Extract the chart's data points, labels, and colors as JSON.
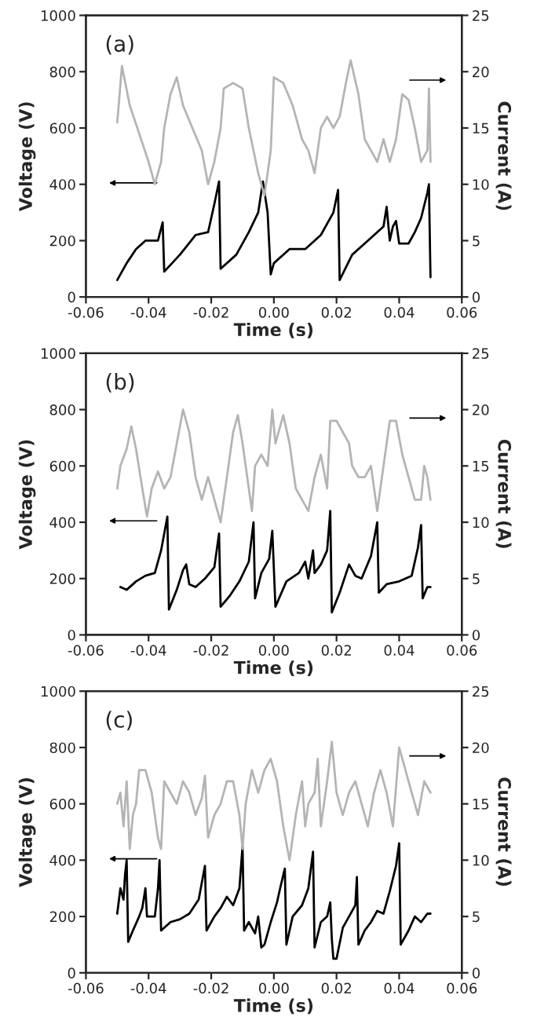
{
  "chart_data": [
    {
      "type": "line",
      "xlabel": "Time (s)",
      "ylabel": "Voltage (V)",
      "y2label": "Current (A)",
      "annotations": [
        "(a)"
      ],
      "xlim": [
        -0.06,
        0.06
      ],
      "xticks": [
        {
          "value": -0.06,
          "label": "-0.06"
        },
        {
          "value": -0.04,
          "label": "-0.04"
        },
        {
          "value": -0.02,
          "label": "-0.02"
        },
        {
          "value": 0,
          "label": "0.00"
        },
        {
          "value": 0.02,
          "label": "0.02"
        },
        {
          "value": 0.04,
          "label": "0.04"
        },
        {
          "value": 0.06,
          "label": "0.06"
        }
      ],
      "ylim": [
        0,
        1000
      ],
      "yticks": [
        0,
        200,
        400,
        600,
        800,
        1000
      ],
      "y2lim": [
        0,
        25
      ],
      "y2ticks": [
        0,
        5,
        10,
        15,
        20,
        25
      ],
      "grid": false,
      "series": [
        {
          "color": "#000000",
          "x": [
            -0.05,
            -0.047,
            -0.044,
            -0.041,
            -0.037,
            -0.0355,
            -0.035,
            -0.03,
            -0.025,
            -0.021,
            -0.019,
            -0.0175,
            -0.017,
            -0.012,
            -0.008,
            -0.005,
            -0.0035,
            -0.002,
            -0.001,
            0.0,
            0.005,
            0.01,
            0.015,
            0.019,
            0.0205,
            0.021,
            0.025,
            0.03,
            0.035,
            0.036,
            0.037,
            0.038,
            0.039,
            0.04,
            0.043,
            0.045,
            0.047,
            0.049,
            0.0495,
            0.05
          ],
          "values": [
            60,
            120,
            170,
            200,
            200,
            265,
            90,
            150,
            220,
            230,
            330,
            410,
            100,
            150,
            230,
            300,
            410,
            300,
            80,
            120,
            170,
            170,
            220,
            300,
            380,
            60,
            150,
            200,
            250,
            320,
            200,
            250,
            270,
            190,
            190,
            230,
            280,
            370,
            400,
            70
          ]
        },
        {
          "color": "#b4b4b4",
          "axis": "y2",
          "x": [
            -0.05,
            -0.0485,
            -0.046,
            -0.043,
            -0.04,
            -0.038,
            -0.036,
            -0.035,
            -0.033,
            -0.031,
            -0.029,
            -0.026,
            -0.023,
            -0.021,
            -0.019,
            -0.017,
            -0.016,
            -0.013,
            -0.01,
            -0.008,
            -0.005,
            -0.003,
            -0.001,
            0.0,
            0.003,
            0.006,
            0.009,
            0.011,
            0.013,
            0.015,
            0.017,
            0.019,
            0.021,
            0.023,
            0.0245,
            0.027,
            0.029,
            0.031,
            0.033,
            0.035,
            0.037,
            0.039,
            0.041,
            0.043,
            0.045,
            0.047,
            0.049,
            0.0495,
            0.05
          ],
          "values": [
            15.5,
            20.5,
            17,
            14.5,
            12,
            10,
            12,
            15,
            18,
            19.5,
            17,
            15,
            13,
            10,
            12,
            15,
            18.5,
            19,
            18.5,
            15,
            11,
            9,
            13,
            19.5,
            19,
            17,
            14,
            13,
            11,
            15,
            16,
            15,
            16,
            19,
            21,
            18,
            14,
            13,
            12,
            14,
            12,
            14,
            18,
            17.5,
            15,
            12,
            13,
            18.5,
            12
          ]
        }
      ]
    },
    {
      "type": "line",
      "xlabel": "Time (s)",
      "ylabel": "Voltage (V)",
      "y2label": "Current (A)",
      "annotations": [
        "(b)"
      ],
      "xlim": [
        -0.06,
        0.06
      ],
      "xticks": [
        {
          "value": -0.06,
          "label": "-0.06"
        },
        {
          "value": -0.04,
          "label": "-0.04"
        },
        {
          "value": -0.02,
          "label": "-0.02"
        },
        {
          "value": 0,
          "label": "0.00"
        },
        {
          "value": 0.02,
          "label": "0.02"
        },
        {
          "value": 0.04,
          "label": "0.04"
        },
        {
          "value": 0.06,
          "label": "0.06"
        }
      ],
      "ylim": [
        0,
        1000
      ],
      "yticks": [
        0,
        200,
        400,
        600,
        800,
        1000
      ],
      "y2lim": [
        0,
        25
      ],
      "y2ticks": [
        0,
        5,
        10,
        15,
        20,
        25
      ],
      "grid": false,
      "series": [
        {
          "color": "#000000",
          "x": [
            -0.049,
            -0.047,
            -0.044,
            -0.041,
            -0.038,
            -0.036,
            -0.034,
            -0.0335,
            -0.031,
            -0.029,
            -0.028,
            -0.027,
            -0.025,
            -0.022,
            -0.019,
            -0.0175,
            -0.017,
            -0.014,
            -0.011,
            -0.008,
            -0.0065,
            -0.006,
            -0.004,
            -0.0015,
            -0.0005,
            0.0005,
            0.004,
            0.008,
            0.01,
            0.011,
            0.0125,
            0.013,
            0.015,
            0.017,
            0.018,
            0.0185,
            0.021,
            0.024,
            0.026,
            0.028,
            0.031,
            0.033,
            0.0335,
            0.036,
            0.04,
            0.044,
            0.046,
            0.047,
            0.0475,
            0.049,
            0.05
          ],
          "values": [
            170,
            160,
            190,
            210,
            220,
            300,
            420,
            90,
            160,
            230,
            250,
            180,
            170,
            200,
            240,
            360,
            100,
            140,
            190,
            260,
            400,
            130,
            220,
            270,
            370,
            100,
            190,
            220,
            260,
            200,
            300,
            220,
            250,
            300,
            440,
            80,
            150,
            250,
            210,
            200,
            280,
            400,
            150,
            180,
            190,
            210,
            310,
            390,
            130,
            170,
            170
          ]
        },
        {
          "color": "#b4b4b4",
          "axis": "y2",
          "x": [
            -0.05,
            -0.049,
            -0.047,
            -0.0455,
            -0.044,
            -0.042,
            -0.0405,
            -0.039,
            -0.037,
            -0.035,
            -0.033,
            -0.031,
            -0.029,
            -0.027,
            -0.025,
            -0.023,
            -0.021,
            -0.019,
            -0.017,
            -0.015,
            -0.013,
            -0.0115,
            -0.01,
            -0.008,
            -0.007,
            -0.006,
            -0.004,
            -0.002,
            -0.0005,
            0.0005,
            0.003,
            0.005,
            0.007,
            0.009,
            0.011,
            0.013,
            0.015,
            0.017,
            0.018,
            0.02,
            0.022,
            0.024,
            0.025,
            0.027,
            0.029,
            0.031,
            0.033,
            0.035,
            0.037,
            0.039,
            0.041,
            0.043,
            0.045,
            0.047,
            0.048,
            0.049,
            0.05
          ],
          "values": [
            13,
            15,
            16.5,
            18.5,
            16.5,
            13,
            10.5,
            13,
            14.5,
            13,
            14,
            17,
            20,
            18,
            14,
            12,
            14,
            12,
            10,
            14,
            18,
            19.5,
            17,
            13,
            11,
            15,
            16,
            15,
            20,
            17,
            19.5,
            17,
            13,
            12,
            11,
            14,
            16,
            13,
            19,
            19,
            18,
            17,
            15,
            14,
            14,
            15,
            11,
            15,
            19,
            19,
            16,
            14,
            12,
            12,
            15,
            14,
            12
          ]
        }
      ]
    },
    {
      "type": "line",
      "xlabel": "Time (s)",
      "ylabel": "Voltage (V)",
      "y2label": "Current (A)",
      "annotations": [
        "(c)"
      ],
      "xlim": [
        -0.06,
        0.06
      ],
      "xticks": [
        {
          "value": -0.06,
          "label": "-0.06"
        },
        {
          "value": -0.04,
          "label": "-0.04"
        },
        {
          "value": -0.02,
          "label": "-0.02"
        },
        {
          "value": 0,
          "label": "0.00"
        },
        {
          "value": 0.02,
          "label": "0.02"
        },
        {
          "value": 0.04,
          "label": "0.04"
        },
        {
          "value": 0.06,
          "label": "0.06"
        }
      ],
      "ylim": [
        0,
        1000
      ],
      "yticks": [
        0,
        200,
        400,
        600,
        800,
        1000
      ],
      "y2lim": [
        0,
        25
      ],
      "y2ticks": [
        0,
        5,
        10,
        15,
        20,
        25
      ],
      "grid": false,
      "series": [
        {
          "color": "#000000",
          "x": [
            -0.05,
            -0.049,
            -0.048,
            -0.0475,
            -0.047,
            -0.0465,
            -0.045,
            -0.043,
            -0.042,
            -0.041,
            -0.0405,
            -0.038,
            -0.037,
            -0.0365,
            -0.036,
            -0.033,
            -0.03,
            -0.027,
            -0.024,
            -0.022,
            -0.0215,
            -0.019,
            -0.017,
            -0.015,
            -0.013,
            -0.011,
            -0.01,
            -0.0095,
            -0.008,
            -0.006,
            -0.005,
            -0.004,
            -0.003,
            -0.001,
            0.001,
            0.002,
            0.0035,
            0.004,
            0.006,
            0.009,
            0.011,
            0.0125,
            0.013,
            0.015,
            0.017,
            0.018,
            0.0185,
            0.019,
            0.02,
            0.022,
            0.024,
            0.026,
            0.0265,
            0.027,
            0.029,
            0.031,
            0.033,
            0.035,
            0.037,
            0.039,
            0.04,
            0.0405,
            0.043,
            0.045,
            0.047,
            0.049,
            0.05
          ],
          "values": [
            210,
            300,
            260,
            350,
            400,
            110,
            150,
            200,
            230,
            300,
            200,
            200,
            300,
            400,
            150,
            180,
            190,
            210,
            260,
            380,
            150,
            200,
            230,
            270,
            240,
            300,
            450,
            150,
            180,
            140,
            200,
            90,
            100,
            180,
            250,
            300,
            370,
            100,
            200,
            240,
            300,
            430,
            90,
            180,
            200,
            250,
            120,
            50,
            50,
            160,
            200,
            240,
            340,
            100,
            150,
            180,
            220,
            210,
            290,
            380,
            460,
            100,
            150,
            200,
            180,
            210,
            210
          ]
        },
        {
          "color": "#b4b4b4",
          "axis": "y2",
          "x": [
            -0.05,
            -0.049,
            -0.048,
            -0.047,
            -0.046,
            -0.045,
            -0.044,
            -0.043,
            -0.041,
            -0.039,
            -0.037,
            -0.036,
            -0.035,
            -0.033,
            -0.031,
            -0.029,
            -0.027,
            -0.025,
            -0.023,
            -0.022,
            -0.021,
            -0.019,
            -0.017,
            -0.015,
            -0.013,
            -0.011,
            -0.01,
            -0.009,
            -0.007,
            -0.005,
            -0.003,
            -0.001,
            0.001,
            0.003,
            0.005,
            0.007,
            0.009,
            0.01,
            0.011,
            0.013,
            0.014,
            0.015,
            0.017,
            0.0185,
            0.02,
            0.022,
            0.024,
            0.026,
            0.028,
            0.03,
            0.032,
            0.034,
            0.036,
            0.038,
            0.04,
            0.042,
            0.044,
            0.046,
            0.048,
            0.05
          ],
          "values": [
            15,
            16,
            13,
            17,
            11,
            14,
            15,
            18,
            18,
            16,
            12,
            11,
            17,
            16,
            15,
            17,
            16,
            14,
            15.5,
            17.5,
            12,
            14,
            15,
            17,
            17,
            14,
            11,
            15,
            18,
            16,
            18,
            19,
            17,
            13,
            10,
            14,
            17,
            13,
            15,
            16,
            19,
            13,
            17,
            20.5,
            16,
            14,
            16,
            17,
            15,
            13,
            16,
            18,
            16,
            13,
            20,
            18,
            16,
            14,
            17,
            16
          ]
        }
      ]
    }
  ]
}
